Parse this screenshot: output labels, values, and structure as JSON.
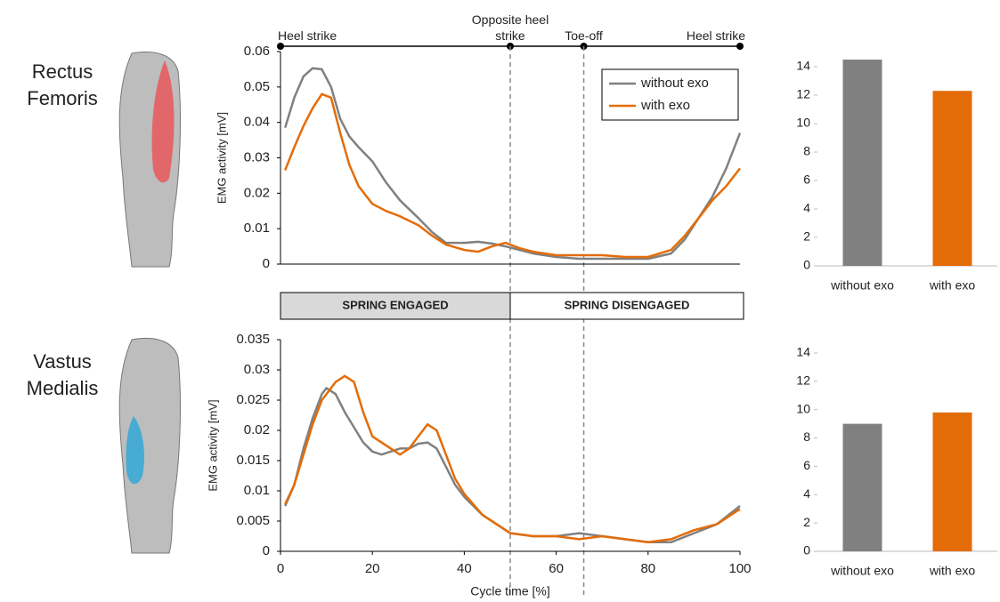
{
  "muscles": [
    "Rectus Femoris",
    "Vastus Medialis"
  ],
  "events": [
    {
      "label": "Heel strike",
      "x": 0
    },
    {
      "label": "Opposite heel strike",
      "x": 50
    },
    {
      "label": "Toe-off",
      "x": 66
    },
    {
      "label": "Heel strike",
      "x": 100
    }
  ],
  "phases": [
    {
      "label": "SPRING ENGAGED",
      "start": 0,
      "end": 50
    },
    {
      "label": "SPRING DISENGAGED",
      "start": 50,
      "end": 100
    }
  ],
  "chart_data": [
    {
      "type": "line",
      "ylabel": "EMG activity [mV]",
      "xlim": [
        0,
        100
      ],
      "ylim": [
        0,
        0.06
      ],
      "yticks": [
        0,
        0.01,
        0.02,
        0.03,
        0.04,
        0.05,
        0.06
      ],
      "legend": "upper right",
      "x": [
        1,
        3,
        5,
        7,
        9,
        11,
        13,
        15,
        17,
        20,
        23,
        26,
        30,
        33,
        36,
        40,
        43,
        46,
        49,
        52,
        55,
        60,
        65,
        70,
        75,
        80,
        85,
        88,
        91,
        94,
        97,
        100
      ],
      "series": [
        {
          "name": "without exo",
          "color": "#808080",
          "values": [
            0.0385,
            0.047,
            0.053,
            0.0553,
            0.055,
            0.05,
            0.041,
            0.036,
            0.033,
            0.029,
            0.023,
            0.018,
            0.013,
            0.009,
            0.006,
            0.006,
            0.0063,
            0.0058,
            0.005,
            0.004,
            0.003,
            0.002,
            0.0015,
            0.0015,
            0.0015,
            0.0015,
            0.003,
            0.007,
            0.013,
            0.019,
            0.027,
            0.037
          ]
        },
        {
          "name": "with exo",
          "color": "#e36c09",
          "values": [
            0.0265,
            0.033,
            0.039,
            0.044,
            0.048,
            0.047,
            0.037,
            0.028,
            0.022,
            0.017,
            0.015,
            0.0135,
            0.011,
            0.008,
            0.0055,
            0.004,
            0.0035,
            0.005,
            0.006,
            0.0045,
            0.0035,
            0.0025,
            0.0025,
            0.0025,
            0.002,
            0.002,
            0.004,
            0.008,
            0.013,
            0.018,
            0.022,
            0.027
          ]
        }
      ]
    },
    {
      "type": "bar",
      "categories": [
        "without exo",
        "with exo"
      ],
      "values": [
        14.5,
        12.3
      ],
      "colors": [
        "#808080",
        "#e36c09"
      ],
      "ylim": [
        0,
        15
      ],
      "yticks": [
        0,
        2,
        4,
        6,
        8,
        10,
        12,
        14
      ]
    },
    {
      "type": "line",
      "ylabel": "EMG activity [mV]",
      "xlabel": "Cycle time [%]",
      "xlim": [
        0,
        100
      ],
      "xticks": [
        0,
        20,
        40,
        60,
        80,
        100
      ],
      "ylim": [
        0,
        0.035
      ],
      "yticks": [
        0,
        0.005,
        0.01,
        0.015,
        0.02,
        0.025,
        0.03,
        0.035
      ],
      "x": [
        1,
        3,
        5,
        7,
        9,
        10,
        12,
        14,
        16,
        18,
        20,
        22,
        24,
        26,
        28,
        30,
        32,
        34,
        36,
        38,
        40,
        44,
        48,
        50,
        55,
        60,
        65,
        70,
        75,
        80,
        85,
        90,
        95,
        100
      ],
      "series": [
        {
          "color": "#808080",
          "values": [
            0.0075,
            0.011,
            0.017,
            0.022,
            0.026,
            0.027,
            0.026,
            0.023,
            0.0205,
            0.018,
            0.0165,
            0.016,
            0.0165,
            0.017,
            0.017,
            0.0178,
            0.018,
            0.017,
            0.014,
            0.011,
            0.009,
            0.006,
            0.004,
            0.003,
            0.0025,
            0.0025,
            0.003,
            0.0025,
            0.002,
            0.0015,
            0.0015,
            0.003,
            0.0045,
            0.0075
          ]
        },
        {
          "color": "#e36c09",
          "values": [
            0.0078,
            0.011,
            0.016,
            0.021,
            0.025,
            0.026,
            0.028,
            0.029,
            0.028,
            0.023,
            0.019,
            0.018,
            0.017,
            0.016,
            0.017,
            0.019,
            0.021,
            0.02,
            0.016,
            0.012,
            0.0095,
            0.006,
            0.004,
            0.003,
            0.0025,
            0.0025,
            0.002,
            0.0025,
            0.002,
            0.0015,
            0.002,
            0.0035,
            0.0045,
            0.007
          ]
        }
      ]
    },
    {
      "type": "bar",
      "categories": [
        "without exo",
        "with exo"
      ],
      "values": [
        9.0,
        9.8
      ],
      "colors": [
        "#808080",
        "#e36c09"
      ],
      "ylim": [
        0,
        15
      ],
      "yticks": [
        0,
        2,
        4,
        6,
        8,
        10,
        12,
        14
      ]
    }
  ]
}
